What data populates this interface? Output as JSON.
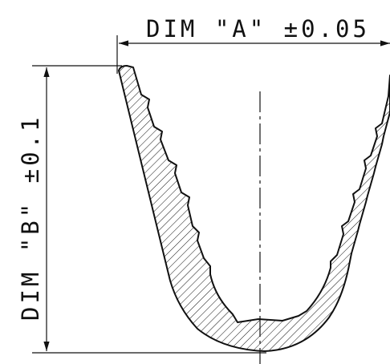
{
  "dimension_a": {
    "label": "DIM \"A\" ±0.05"
  },
  "dimension_b": {
    "label": "DIM \"B\" ±0.1"
  },
  "colors": {
    "line": "#111111",
    "background": "#ffffff"
  }
}
